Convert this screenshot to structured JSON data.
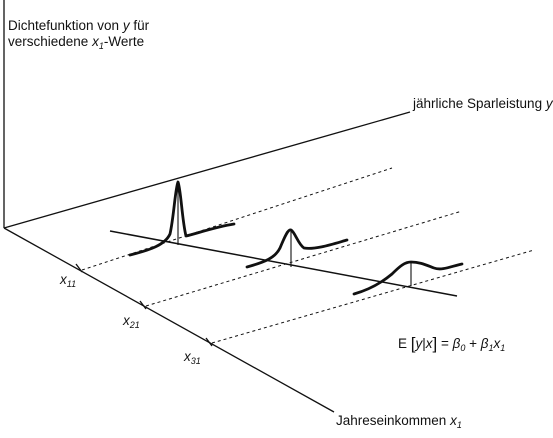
{
  "labels": {
    "z_axis_line1": "Dichtefunktion von ",
    "z_axis_var": "y",
    "z_axis_line1_end": " für",
    "z_axis_line2_start": "verschiedene ",
    "z_axis_line2_var": "x",
    "z_axis_line2_sub": "1",
    "z_axis_line2_end": "-Werte",
    "y_axis_text": "jährliche Sparleistung ",
    "y_axis_var": "y",
    "x_axis_text": "Jahreseinkommen ",
    "x_axis_var": "x",
    "x_axis_sub": "1"
  },
  "ticks": [
    {
      "var": "x",
      "sub": "11"
    },
    {
      "var": "x",
      "sub": "21"
    },
    {
      "var": "x",
      "sub": "31"
    }
  ],
  "equation": {
    "e": "E ",
    "open": "[",
    "y": "y",
    "bar": "|",
    "x": "x",
    "close": "]",
    "eq": " = ",
    "beta": "β",
    "b0sub": "0",
    "plus": " + ",
    "b1sub": "1",
    "x1": "x",
    "x1sub": "1"
  }
}
